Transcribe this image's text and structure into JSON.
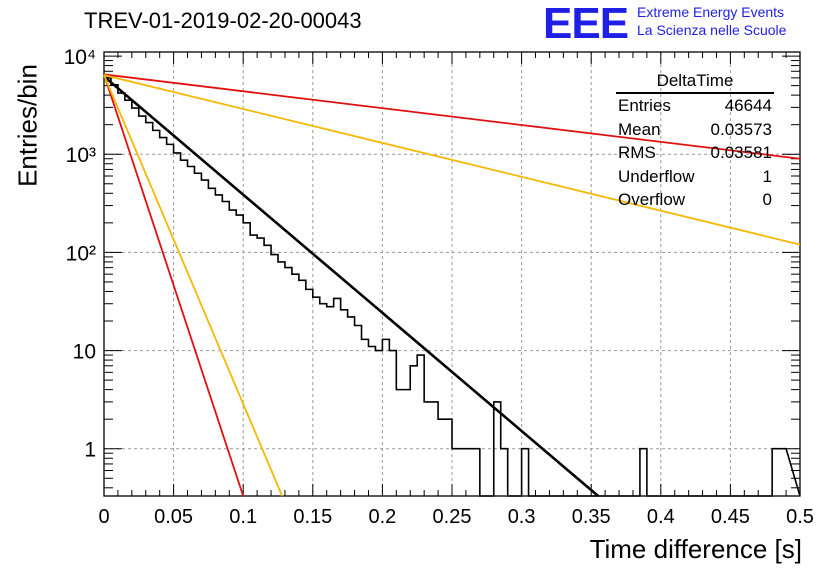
{
  "header": {
    "run_title": "TREV-01-2019-02-20-00043",
    "logo_text": "EEE",
    "project_line1": "Extreme Energy Events",
    "project_line2": "La Scienza nelle Scuole"
  },
  "stats_box": {
    "title": "DeltaTime",
    "rows": [
      {
        "label": "Entries",
        "value": "46644"
      },
      {
        "label": "Mean",
        "value": "0.03573"
      },
      {
        "label": "RMS",
        "value": "0.03581"
      },
      {
        "label": "Underflow",
        "value": "1"
      },
      {
        "label": "Overflow",
        "value": "0"
      }
    ]
  },
  "colors": {
    "histogram": "#000000",
    "fit": "#000000",
    "red": "#e01010",
    "yellow": "#f5b800",
    "grid": "#9a9a9a"
  },
  "chart_data": {
    "type": "line",
    "title": "TREV-01-2019-02-20-00043",
    "xlabel": "Time difference [s]",
    "ylabel": "Entries/bin",
    "xlim": [
      0,
      0.5
    ],
    "ylim": [
      0.33,
      11000
    ],
    "yscale": "log",
    "grid": true,
    "x_ticks": [
      "0",
      "0.05",
      "0.1",
      "0.15",
      "0.2",
      "0.25",
      "0.3",
      "0.35",
      "0.4",
      "0.45",
      "0.5"
    ],
    "y_ticks": [
      "1",
      "10",
      "10²",
      "10³",
      "10⁴"
    ],
    "histogram": {
      "bin_width": 0.005,
      "bin_start": 0,
      "counts": [
        6000,
        5100,
        4200,
        3550,
        2950,
        2450,
        2100,
        1750,
        1480,
        1260,
        1030,
        870,
        750,
        640,
        545,
        450,
        385,
        330,
        270,
        240,
        200,
        150,
        140,
        118,
        95,
        80,
        70,
        60,
        52,
        42,
        35,
        30,
        28,
        34,
        26,
        22,
        18,
        13,
        11,
        10,
        13,
        10,
        4,
        4,
        7,
        9,
        3,
        3,
        2,
        2,
        1,
        1,
        1,
        1,
        0,
        0,
        3,
        1,
        0,
        0,
        1,
        0,
        0,
        0,
        0,
        0,
        0,
        0,
        0,
        0,
        0,
        0,
        0,
        0,
        0,
        0,
        0,
        1,
        0,
        0,
        0,
        0,
        0,
        0,
        0,
        0,
        0,
        0,
        0,
        0,
        0,
        0,
        0,
        0,
        0,
        0,
        1,
        1
      ]
    },
    "series": [
      {
        "points": [
          [
            0,
            6200
          ],
          [
            0.355,
            0.33
          ]
        ]
      },
      {
        "points": [
          [
            0,
            6500
          ],
          [
            0.5,
            900
          ]
        ]
      },
      {
        "points": [
          [
            0,
            6500
          ],
          [
            0.1,
            0.33
          ]
        ]
      },
      {
        "points": [
          [
            0,
            6400
          ],
          [
            0.5,
            120
          ]
        ]
      },
      {
        "points": [
          [
            0,
            6400
          ],
          [
            0.128,
            0.33
          ]
        ]
      }
    ]
  }
}
